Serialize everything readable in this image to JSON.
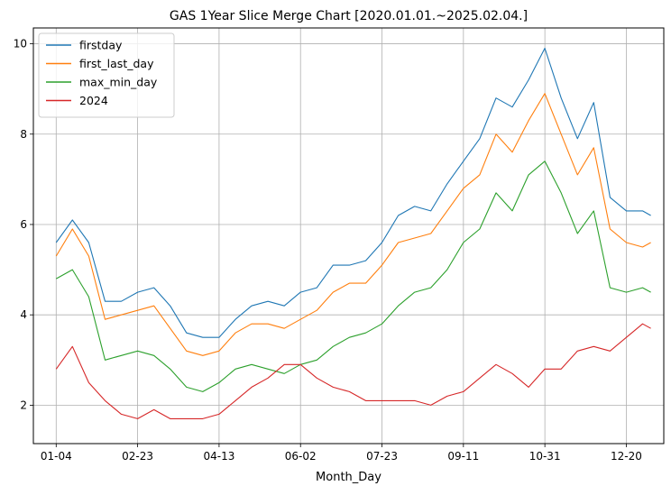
{
  "chart_data": {
    "type": "line",
    "title": "GAS 1Year Slice Merge Chart [2020.01.01.~2025.02.04.]",
    "xlabel": "Month_Day",
    "ylabel": "",
    "x_tick_labels": [
      "01-04",
      "02-23",
      "04-13",
      "06-02",
      "07-23",
      "09-11",
      "10-31",
      "12-20"
    ],
    "y_ticks": [
      2,
      4,
      6,
      8,
      10
    ],
    "xlim": [
      -14,
      373
    ],
    "ylim": [
      1.15,
      10.35
    ],
    "grid": true,
    "legend_position": "upper-left",
    "colors": [
      "#1f77b4",
      "#ff7f0e",
      "#2ca02c",
      "#d62728"
    ],
    "x": [
      0,
      10,
      20,
      30,
      40,
      50,
      60,
      70,
      80,
      90,
      100,
      110,
      120,
      130,
      140,
      150,
      160,
      170,
      180,
      190,
      200,
      210,
      220,
      230,
      240,
      250,
      260,
      270,
      280,
      290,
      300,
      310,
      320,
      330,
      340,
      350,
      360,
      365
    ],
    "series": [
      {
        "name": "firstday",
        "values": [
          5.6,
          6.1,
          5.6,
          4.3,
          4.3,
          4.5,
          4.6,
          4.2,
          3.6,
          3.5,
          3.5,
          3.9,
          4.2,
          4.3,
          4.2,
          4.5,
          4.6,
          5.1,
          5.1,
          5.2,
          5.6,
          6.2,
          6.4,
          6.3,
          6.9,
          7.4,
          7.9,
          8.8,
          8.6,
          9.2,
          9.9,
          8.8,
          7.9,
          8.7,
          6.6,
          6.3,
          6.3,
          6.2
        ]
      },
      {
        "name": "first_last_day",
        "values": [
          5.3,
          5.9,
          5.3,
          3.9,
          4.0,
          4.1,
          4.2,
          3.7,
          3.2,
          3.1,
          3.2,
          3.6,
          3.8,
          3.8,
          3.7,
          3.9,
          4.1,
          4.5,
          4.7,
          4.7,
          5.1,
          5.6,
          5.7,
          5.8,
          6.3,
          6.8,
          7.1,
          8.0,
          7.6,
          8.3,
          8.9,
          8.0,
          7.1,
          7.7,
          5.9,
          5.6,
          5.5,
          5.6
        ]
      },
      {
        "name": "max_min_day",
        "values": [
          4.8,
          5.0,
          4.4,
          3.0,
          3.1,
          3.2,
          3.1,
          2.8,
          2.4,
          2.3,
          2.5,
          2.8,
          2.9,
          2.8,
          2.7,
          2.9,
          3.0,
          3.3,
          3.5,
          3.6,
          3.8,
          4.2,
          4.5,
          4.6,
          5.0,
          5.6,
          5.9,
          6.7,
          6.3,
          7.1,
          7.4,
          6.7,
          5.8,
          6.3,
          4.6,
          4.5,
          4.6,
          4.5
        ]
      },
      {
        "name": "2024",
        "values": [
          2.8,
          3.3,
          2.5,
          2.1,
          1.8,
          1.7,
          1.9,
          1.7,
          1.7,
          1.7,
          1.8,
          2.1,
          2.4,
          2.6,
          2.9,
          2.9,
          2.6,
          2.4,
          2.3,
          2.1,
          2.1,
          2.1,
          2.1,
          2.0,
          2.2,
          2.3,
          2.6,
          2.9,
          2.7,
          2.4,
          2.8,
          2.8,
          3.2,
          3.3,
          3.2,
          3.5,
          3.8,
          3.7
        ]
      }
    ]
  }
}
